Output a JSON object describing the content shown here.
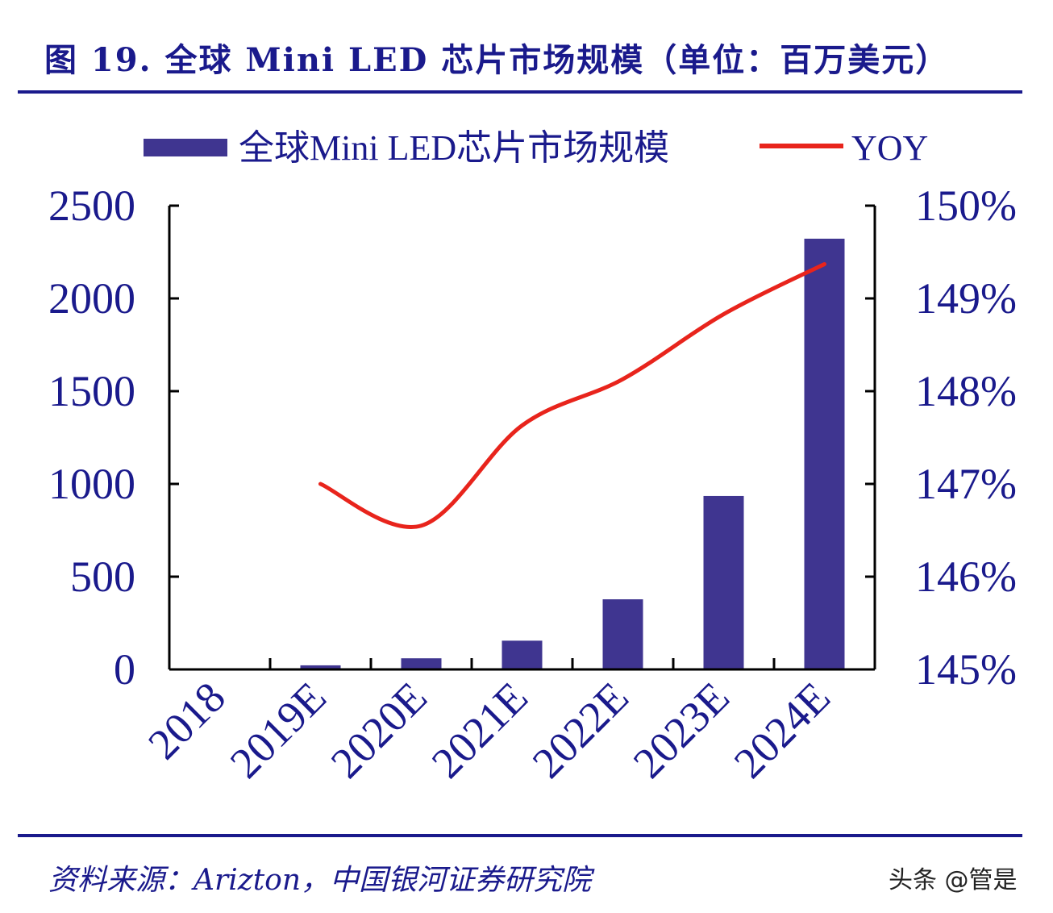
{
  "title": "图 19. 全球 Mini LED 芯片市场规模（单位：百万美元）",
  "source": "资料来源：Arizton，中国银河证券研究院",
  "watermark": "头条 @管是",
  "colors": {
    "bar": "#3f3590",
    "line": "#e8241c",
    "text": "#1a1a8c",
    "axis": "#000000"
  },
  "chart_data": {
    "type": "bar+line",
    "categories": [
      "2018",
      "2019E",
      "2020E",
      "2021E",
      "2022E",
      "2023E",
      "2024E"
    ],
    "series": [
      {
        "name": "全球Mini LED芯片市场规模",
        "type": "bar",
        "axis": "left",
        "values": [
          4,
          22,
          60,
          155,
          378,
          935,
          2322
        ]
      },
      {
        "name": "YOY",
        "type": "line",
        "axis": "right",
        "values": [
          null,
          147.0,
          146.55,
          147.63,
          148.13,
          148.83,
          149.37
        ]
      }
    ],
    "ylim_left": [
      0,
      2500
    ],
    "yticks_left": [
      "0",
      "500",
      "1000",
      "1500",
      "2000",
      "2500"
    ],
    "ylim_right": [
      145,
      150
    ],
    "yticks_right": [
      "145%",
      "146%",
      "147%",
      "148%",
      "149%",
      "150%"
    ],
    "legend_position": "top",
    "grid": false
  }
}
